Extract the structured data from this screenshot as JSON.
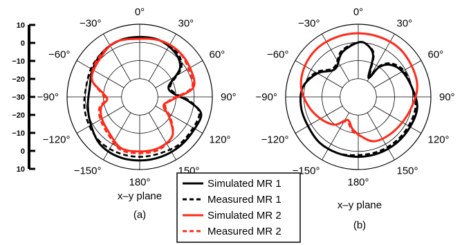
{
  "chart_data": [
    {
      "type": "polar-line",
      "panel_label": "(a)",
      "plane_label": "x–y plane",
      "angle_ticks": [
        "0°",
        "30°",
        "60°",
        "90°",
        "120°",
        "150°",
        "180°",
        "−150°",
        "−120°",
        "−90°",
        "−60°",
        "−30°"
      ],
      "radial_ticks": [
        "10",
        "0",
        "−10",
        "−20",
        "−30",
        "−20",
        "−10",
        "0",
        "10"
      ],
      "rlim": [
        -30,
        10
      ],
      "grid": true,
      "series": [
        {
          "name": "Simulated MR 1",
          "color": "#000000",
          "dash": "solid",
          "theta": [
            0,
            20,
            40,
            55,
            70,
            85,
            95,
            105,
            120,
            140,
            160,
            180,
            200,
            220,
            240,
            260,
            280,
            300,
            320,
            340
          ],
          "r": [
            3,
            3,
            1,
            -3,
            -13,
            -11,
            -3,
            5,
            5,
            5,
            5,
            5,
            5,
            4,
            1,
            -1,
            -2,
            0,
            2,
            3
          ]
        },
        {
          "name": "Measured MR 1",
          "color": "#000000",
          "dash": "dashed",
          "theta": [
            0,
            20,
            40,
            55,
            70,
            85,
            95,
            105,
            120,
            140,
            160,
            180,
            200,
            220,
            240,
            260,
            280,
            300,
            320,
            340
          ],
          "r": [
            3,
            3,
            2,
            -2,
            -12,
            -10,
            -2,
            4,
            4,
            4,
            3,
            3,
            3,
            3,
            2,
            1,
            0,
            1,
            2,
            3
          ]
        },
        {
          "name": "Simulated MR 2",
          "color": "#ff2a1a",
          "dash": "solid",
          "theta": [
            0,
            20,
            40,
            60,
            80,
            95,
            110,
            125,
            140,
            160,
            180,
            200,
            220,
            240,
            255,
            265,
            275,
            290,
            310,
            335
          ],
          "r": [
            2,
            3,
            3,
            2,
            0,
            -12,
            -16,
            -10,
            -2,
            0,
            0,
            0,
            -4,
            -6,
            -8,
            -12,
            -10,
            -2,
            0,
            3
          ]
        },
        {
          "name": "Measured MR 2",
          "color": "#ff2a1a",
          "dash": "dashed",
          "theta": [
            0,
            20,
            40,
            60,
            80,
            95,
            110,
            125,
            140,
            160,
            180,
            200,
            220,
            240,
            255,
            265,
            275,
            290,
            310,
            335
          ],
          "r": [
            2,
            3,
            3,
            1,
            -1,
            -13,
            -15,
            -9,
            -2,
            1,
            1,
            1,
            -3,
            -5,
            -7,
            -11,
            -9,
            -2,
            1,
            3
          ]
        }
      ]
    },
    {
      "type": "polar-line",
      "panel_label": "(b)",
      "plane_label": "x–y plane",
      "angle_ticks": [
        "0°",
        "30°",
        "60°",
        "90°",
        "120°",
        "150°",
        "180°",
        "−150°",
        "−120°",
        "−90°",
        "−60°",
        "−30°"
      ],
      "rlim": [
        -30,
        10
      ],
      "grid": true,
      "series": [
        {
          "name": "Simulated MR 1",
          "color": "#000000",
          "dash": "solid",
          "theta": [
            0,
            10,
            20,
            28,
            35,
            45,
            60,
            80,
            100,
            120,
            140,
            160,
            180,
            200,
            220,
            240,
            260,
            280,
            300,
            320,
            340
          ],
          "r": [
            0,
            -1,
            -6,
            -18,
            -10,
            -5,
            -2,
            0,
            3,
            3,
            3,
            3,
            3,
            3,
            3,
            2,
            2,
            1,
            -4,
            -10,
            -4
          ]
        },
        {
          "name": "Measured MR 1",
          "color": "#000000",
          "dash": "dashed",
          "theta": [
            0,
            10,
            20,
            28,
            35,
            45,
            60,
            80,
            100,
            120,
            140,
            160,
            180,
            200,
            220,
            240,
            260,
            280,
            300,
            320,
            340
          ],
          "r": [
            0,
            -1,
            -5,
            -16,
            -9,
            -4,
            -1,
            0,
            2,
            2,
            2,
            2,
            2,
            3,
            3,
            2,
            2,
            1,
            -3,
            -9,
            -3
          ]
        },
        {
          "name": "Simulated MR 2",
          "color": "#ff2a1a",
          "dash": "solid",
          "theta": [
            0,
            20,
            40,
            60,
            80,
            100,
            120,
            140,
            160,
            175,
            190,
            205,
            220,
            240,
            260,
            280,
            300,
            320,
            340
          ],
          "r": [
            5,
            5,
            5,
            4,
            3,
            0,
            -2,
            -3,
            -4,
            -8,
            -12,
            -16,
            -10,
            -6,
            -2,
            2,
            4,
            5,
            5
          ]
        },
        {
          "name": "Measured MR 2",
          "color": "#ff2a1a",
          "dash": "dashed",
          "theta": [
            0,
            20,
            40,
            60,
            80,
            100,
            120,
            140,
            160,
            175,
            190,
            205,
            220,
            240,
            260,
            280,
            300,
            320,
            340
          ],
          "r": [
            5,
            5,
            5,
            4,
            3,
            0,
            -2,
            -3,
            -4,
            -8,
            -11,
            -15,
            -10,
            -6,
            -2,
            2,
            4,
            5,
            5
          ]
        }
      ]
    }
  ],
  "legend": {
    "placement": "bottom-center",
    "entries": [
      {
        "label": "Simulated MR 1",
        "color": "#000000",
        "dash": "solid"
      },
      {
        "label": "Measured MR 1",
        "color": "#000000",
        "dash": "dashed"
      },
      {
        "label": "Simulated MR 2",
        "color": "#ff2a1a",
        "dash": "solid"
      },
      {
        "label": "Measured MR 2",
        "color": "#ff2a1a",
        "dash": "dashed"
      }
    ]
  }
}
